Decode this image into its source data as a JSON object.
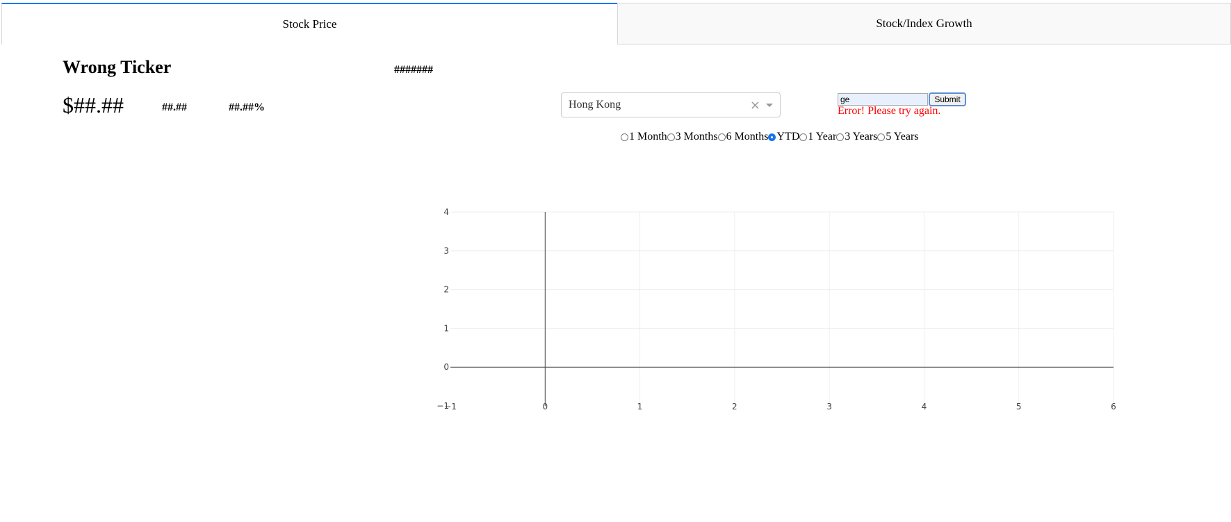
{
  "tabs": [
    {
      "label": "Stock Price",
      "active": true
    },
    {
      "label": "Stock/Index Growth",
      "active": false
    }
  ],
  "header": {
    "title": "Wrong Ticker",
    "hashes": "#######",
    "price": "$##.##",
    "change": "##.##",
    "change_pct": "##.##%"
  },
  "market_select": {
    "value": "Hong Kong",
    "clear_icon": "×"
  },
  "ticker": {
    "value": "ge",
    "submit_label": "Submit",
    "error": "Error! Please try again."
  },
  "periods": {
    "options": [
      "1 Month",
      "3 Months",
      "6 Months",
      "YTD",
      "1 Year",
      "3 Years",
      "5 Years"
    ],
    "selected": "YTD"
  },
  "chart_data": {
    "type": "line",
    "series": [],
    "xlim": [
      -1,
      6
    ],
    "ylim": [
      -1,
      4
    ],
    "x_ticks": [
      "−1",
      "0",
      "1",
      "2",
      "3",
      "4",
      "5",
      "6"
    ],
    "y_ticks": [
      "−1",
      "0",
      "1",
      "2",
      "3",
      "4"
    ],
    "grid": true
  },
  "colors": {
    "accent": "#1975fa",
    "error": "#ff0000",
    "grid": "#eeeeee",
    "zeroline": "#444444"
  }
}
